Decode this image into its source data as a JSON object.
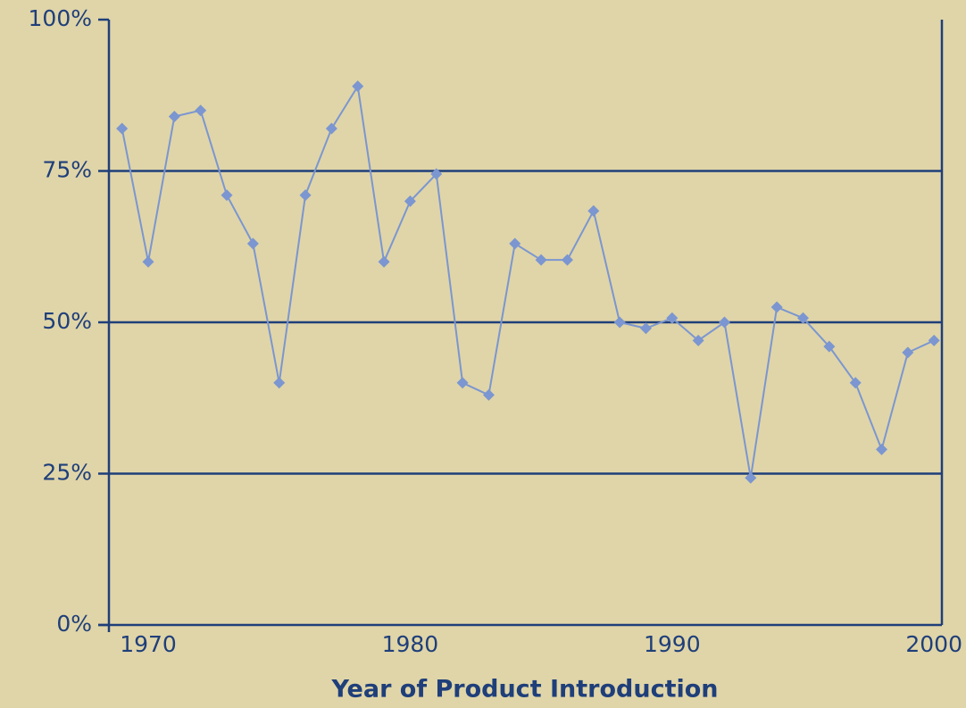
{
  "chart_data": {
    "type": "line",
    "x_label": "Year of Product Introduction",
    "x": [
      1969,
      1970,
      1971,
      1972,
      1973,
      1974,
      1975,
      1976,
      1977,
      1978,
      1979,
      1980,
      1981,
      1982,
      1983,
      1984,
      1985,
      1986,
      1987,
      1988,
      1989,
      1990,
      1991,
      1992,
      1993,
      1994,
      1995,
      1996,
      1997,
      1998,
      1999,
      2000
    ],
    "series": [
      {
        "color": "#7b96d0",
        "marker": "diamond",
        "values": [
          82,
          60,
          84,
          85,
          71,
          63,
          40,
          71,
          82,
          89,
          60,
          70,
          74.5,
          40,
          38,
          63,
          60.3,
          60.3,
          68.4,
          50,
          49,
          50.7,
          47,
          50,
          24.3,
          52.5,
          50.7,
          46,
          40,
          29,
          45,
          47
        ]
      }
    ],
    "xlim": [
      1968.5,
      2000.3
    ],
    "xticks": [
      1970,
      1980,
      1990,
      2000
    ],
    "ylim": [
      0,
      100
    ],
    "yticks": [
      {
        "value": 0,
        "label": "0%"
      },
      {
        "value": 25,
        "label": "25%"
      },
      {
        "value": 50,
        "label": "50%"
      },
      {
        "value": 75,
        "label": "75%"
      },
      {
        "value": 100,
        "label": "100%"
      }
    ],
    "grid": true
  }
}
